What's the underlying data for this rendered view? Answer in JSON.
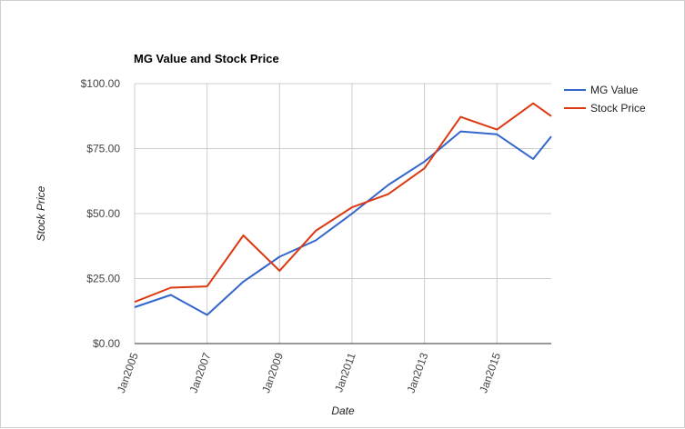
{
  "chart_data": {
    "type": "line",
    "title": "MG Value and Stock Price",
    "xlabel": "Date",
    "ylabel": "Stock Price",
    "x_tick_labels": [
      "Jan2005",
      "Jan2007",
      "Jan2009",
      "Jan2011",
      "Jan2013",
      "Jan2015"
    ],
    "x_tick_years": [
      2005,
      2007,
      2009,
      2011,
      2013,
      2015
    ],
    "y_tick_labels": [
      "$0.00",
      "$25.00",
      "$50.00",
      "$75.00",
      "$100.00"
    ],
    "y_tick_values": [
      0,
      25,
      50,
      75,
      100
    ],
    "xlim": [
      2005,
      2016.5
    ],
    "ylim": [
      0,
      100
    ],
    "grid": true,
    "legend_position": "right",
    "series": [
      {
        "name": "MG Value",
        "color": "#3366cc",
        "x": [
          2005,
          2006,
          2007,
          2008,
          2009,
          2010,
          2011,
          2012,
          2013,
          2014,
          2015,
          2016,
          2016.5
        ],
        "values": [
          14.0,
          18.7,
          11.0,
          23.8,
          33.4,
          39.7,
          50.0,
          61.0,
          70.0,
          81.6,
          80.5,
          71.0,
          79.7
        ]
      },
      {
        "name": "Stock Price",
        "color": "#dc3912",
        "x": [
          2005,
          2006,
          2007,
          2008,
          2009,
          2010,
          2011,
          2012,
          2013,
          2014,
          2015,
          2016,
          2016.5
        ],
        "values": [
          16.0,
          21.5,
          22.0,
          41.6,
          28.0,
          43.4,
          52.4,
          57.5,
          67.4,
          87.2,
          82.3,
          92.4,
          87.5
        ]
      }
    ]
  }
}
